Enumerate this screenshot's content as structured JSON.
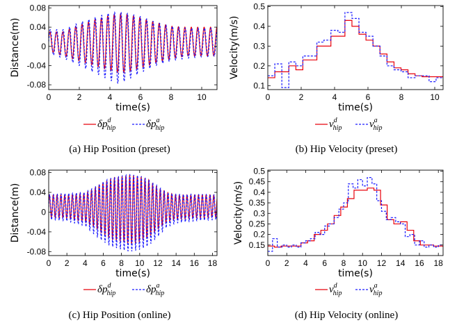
{
  "chart_data": [
    {
      "id": "a",
      "type": "line",
      "caption": "(a)  Hip Position (preset)",
      "xlabel": "time(s)",
      "ylabel": "Distance(m)",
      "xlim": [
        0,
        11
      ],
      "ylim": [
        -0.09,
        0.085
      ],
      "xticks": [
        0,
        2,
        4,
        6,
        8,
        10
      ],
      "yticks": [
        -0.08,
        -0.04,
        0,
        0.04,
        0.08
      ],
      "ytick_labels": [
        "-0.08",
        "-0.04",
        "0",
        "0.04",
        "0.08"
      ],
      "legend": [
        {
          "base": "δp",
          "sup": "d",
          "sub": "hip",
          "color": "#e8000b",
          "dash": false
        },
        {
          "base": "δp",
          "sup": "a",
          "sub": "hip",
          "color": "#1a1aff",
          "dash": true
        }
      ],
      "oscillation": {
        "period": 0.42,
        "x": [
          0,
          1,
          2,
          3,
          4,
          4.5,
          5,
          6,
          7,
          8,
          9,
          10,
          11
        ],
        "upper_desired": [
          0.03,
          0.03,
          0.045,
          0.055,
          0.065,
          0.068,
          0.068,
          0.06,
          0.05,
          0.042,
          0.04,
          0.04,
          0.04
        ],
        "lower_desired": [
          -0.01,
          -0.02,
          -0.03,
          -0.04,
          -0.05,
          -0.055,
          -0.055,
          -0.045,
          -0.035,
          -0.025,
          -0.02,
          -0.02,
          -0.02
        ],
        "upper_actual": [
          0.035,
          0.035,
          0.05,
          0.06,
          0.07,
          0.072,
          0.07,
          0.062,
          0.05,
          0.042,
          0.038,
          0.038,
          0.038
        ],
        "lower_actual": [
          -0.015,
          -0.025,
          -0.04,
          -0.055,
          -0.07,
          -0.077,
          -0.072,
          -0.055,
          -0.04,
          -0.03,
          -0.025,
          -0.022,
          -0.02
        ]
      }
    },
    {
      "id": "b",
      "type": "line",
      "caption": "(b)  Hip Velocity (preset)",
      "xlabel": "time(s)",
      "ylabel": "Velocity(m/s)",
      "xlim": [
        0,
        10.5
      ],
      "ylim": [
        0.08,
        0.505
      ],
      "xticks": [
        0,
        2,
        4,
        6,
        8,
        10
      ],
      "yticks": [
        0.1,
        0.2,
        0.3,
        0.4,
        0.5
      ],
      "ytick_labels": [
        "0.1",
        "0.2",
        "0.3",
        "0.4",
        "0.5"
      ],
      "legend": [
        {
          "base": "v",
          "sup": "d",
          "sub": "hip",
          "color": "#e8000b",
          "dash": false
        },
        {
          "base": "v",
          "sup": "a",
          "sub": "hip",
          "color": "#1a1aff",
          "dash": true
        }
      ],
      "series": [
        {
          "name": "desired",
          "x": [
            0,
            0.42,
            0.84,
            1.26,
            1.68,
            2.1,
            2.52,
            2.94,
            3.36,
            3.78,
            4.2,
            4.62,
            5.04,
            5.46,
            5.88,
            6.3,
            6.72,
            7.14,
            7.56,
            7.98,
            8.4,
            8.82,
            9.24,
            9.66,
            10.08,
            10.5
          ],
          "y": [
            0.14,
            0.17,
            0.17,
            0.2,
            0.18,
            0.23,
            0.23,
            0.3,
            0.3,
            0.35,
            0.35,
            0.43,
            0.4,
            0.36,
            0.33,
            0.3,
            0.26,
            0.22,
            0.19,
            0.18,
            0.16,
            0.15,
            0.145,
            0.145,
            0.145,
            0.14
          ]
        },
        {
          "name": "actual",
          "x": [
            0,
            0.42,
            0.84,
            1.26,
            1.68,
            2.1,
            2.52,
            2.94,
            3.36,
            3.78,
            4.2,
            4.62,
            5.04,
            5.46,
            5.88,
            6.3,
            6.72,
            7.14,
            7.56,
            7.98,
            8.4,
            8.82,
            9.24,
            9.66,
            10.08,
            10.5
          ],
          "y": [
            0.15,
            0.21,
            0.09,
            0.22,
            0.2,
            0.25,
            0.25,
            0.32,
            0.33,
            0.38,
            0.37,
            0.47,
            0.44,
            0.37,
            0.35,
            0.3,
            0.25,
            0.2,
            0.18,
            0.17,
            0.14,
            0.15,
            0.15,
            0.12,
            0.14,
            0.14
          ]
        }
      ]
    },
    {
      "id": "c",
      "type": "line",
      "caption": "(c)  Hip Position (online)",
      "xlabel": "time(s)",
      "ylabel": "Distance(m)",
      "xlim": [
        0,
        18.5
      ],
      "ylim": [
        -0.088,
        0.085
      ],
      "xticks": [
        0,
        2,
        4,
        6,
        8,
        10,
        12,
        14,
        16,
        18
      ],
      "yticks": [
        -0.08,
        -0.04,
        0,
        0.04,
        0.08
      ],
      "ytick_labels": [
        "-0.08",
        "-0.04",
        "0",
        "0.04",
        "0.08"
      ],
      "legend": [
        {
          "base": "δp",
          "sup": "d",
          "sub": "hip",
          "color": "#e8000b",
          "dash": false
        },
        {
          "base": "δp",
          "sup": "a",
          "sub": "hip",
          "color": "#1a1aff",
          "dash": true
        }
      ],
      "oscillation": {
        "period": 0.42,
        "x": [
          0,
          2,
          4,
          5,
          6,
          7,
          8,
          9,
          10,
          11,
          12,
          13,
          14,
          16,
          18.5
        ],
        "upper_desired": [
          0.035,
          0.035,
          0.038,
          0.048,
          0.06,
          0.068,
          0.072,
          0.075,
          0.072,
          0.065,
          0.05,
          0.04,
          0.035,
          0.035,
          0.035
        ],
        "lower_desired": [
          -0.01,
          -0.012,
          -0.02,
          -0.03,
          -0.045,
          -0.055,
          -0.06,
          -0.065,
          -0.06,
          -0.05,
          -0.035,
          -0.02,
          -0.015,
          -0.012,
          -0.01
        ],
        "upper_actual": [
          0.035,
          0.038,
          0.04,
          0.05,
          0.062,
          0.07,
          0.074,
          0.076,
          0.074,
          0.066,
          0.052,
          0.04,
          0.036,
          0.036,
          0.035
        ],
        "lower_actual": [
          -0.015,
          -0.018,
          -0.028,
          -0.045,
          -0.06,
          -0.07,
          -0.076,
          -0.08,
          -0.076,
          -0.068,
          -0.05,
          -0.03,
          -0.022,
          -0.018,
          -0.015
        ]
      }
    },
    {
      "id": "d",
      "type": "line",
      "caption": "(d)  Hip Velocity (online)",
      "xlabel": "time(s)",
      "ylabel": "Velocity(m/s)",
      "xlim": [
        0,
        18.5
      ],
      "ylim": [
        0.1,
        0.505
      ],
      "xticks": [
        0,
        2,
        4,
        6,
        8,
        10,
        12,
        14,
        16,
        18
      ],
      "yticks": [
        0.15,
        0.2,
        0.25,
        0.3,
        0.35,
        0.4,
        0.45,
        0.5
      ],
      "ytick_labels": [
        "0.15",
        "0.2",
        "0.25",
        "0.3",
        "0.35",
        "0.4",
        "0.45",
        "0.5"
      ],
      "legend": [
        {
          "base": "v",
          "sup": "d",
          "sub": "hip",
          "color": "#e8000b",
          "dash": false
        },
        {
          "base": "v",
          "sup": "a",
          "sub": "hip",
          "color": "#1a1aff",
          "dash": true
        }
      ],
      "series": [
        {
          "name": "desired",
          "x": [
            0,
            0.7,
            1.4,
            2.1,
            2.8,
            3.5,
            4.2,
            4.9,
            5.6,
            6.3,
            7.0,
            7.7,
            8.4,
            9.1,
            9.8,
            10.5,
            11.2,
            11.9,
            12.6,
            13.3,
            14.0,
            14.7,
            15.4,
            16.1,
            16.8,
            17.5,
            18.5
          ],
          "y": [
            0.145,
            0.14,
            0.145,
            0.145,
            0.145,
            0.16,
            0.17,
            0.2,
            0.22,
            0.25,
            0.29,
            0.33,
            0.37,
            0.41,
            0.41,
            0.42,
            0.41,
            0.34,
            0.27,
            0.25,
            0.26,
            0.22,
            0.17,
            0.15,
            0.15,
            0.145,
            0.14
          ]
        },
        {
          "name": "actual",
          "x": [
            0,
            0.5,
            1.0,
            1.5,
            2.0,
            2.5,
            3.0,
            3.5,
            4.0,
            4.5,
            5.0,
            5.5,
            6.0,
            6.5,
            7.0,
            7.5,
            8.0,
            8.5,
            9.0,
            9.5,
            10.0,
            10.5,
            11.0,
            11.5,
            12.0,
            12.5,
            13.0,
            13.5,
            14.0,
            14.5,
            15.0,
            15.5,
            16.0,
            16.5,
            17.0,
            17.5,
            18.0
          ],
          "y": [
            0.12,
            0.18,
            0.14,
            0.15,
            0.14,
            0.15,
            0.14,
            0.16,
            0.17,
            0.18,
            0.21,
            0.2,
            0.24,
            0.25,
            0.28,
            0.32,
            0.35,
            0.44,
            0.42,
            0.46,
            0.43,
            0.47,
            0.44,
            0.36,
            0.31,
            0.27,
            0.28,
            0.26,
            0.25,
            0.19,
            0.2,
            0.15,
            0.17,
            0.14,
            0.15,
            0.14,
            0.15
          ]
        }
      ]
    }
  ]
}
